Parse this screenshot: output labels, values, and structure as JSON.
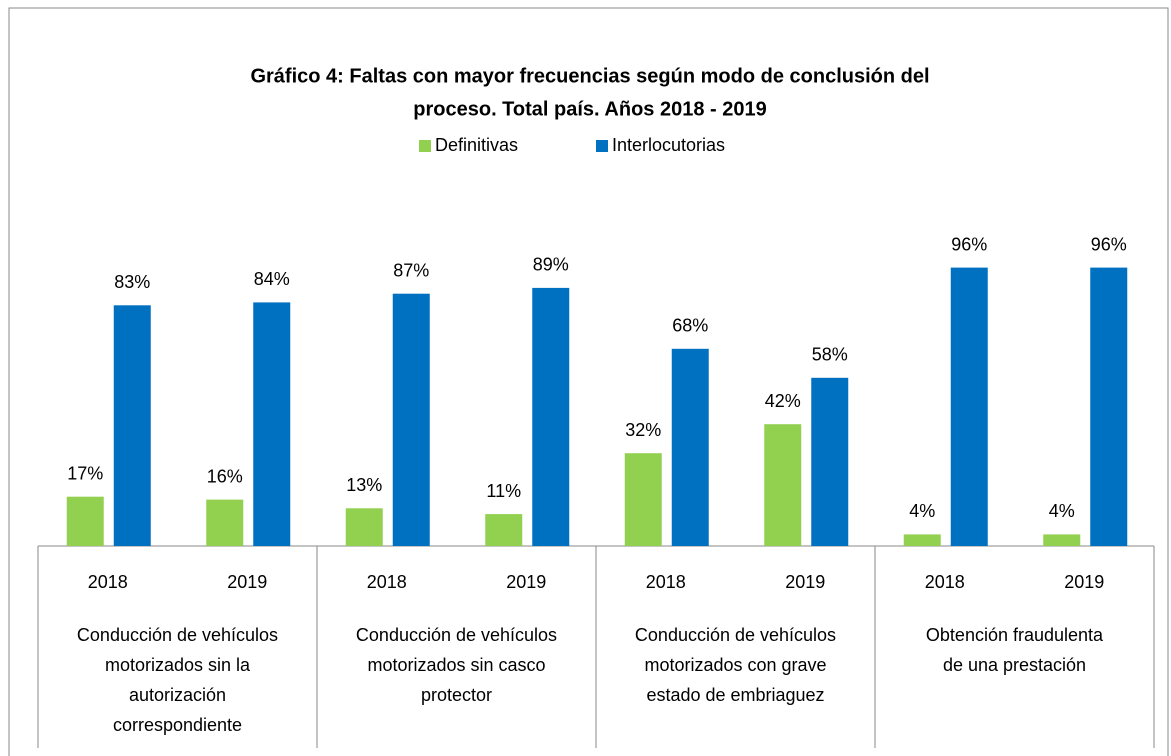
{
  "chart_data": {
    "type": "bar",
    "title": [
      "Gráfico 4: Faltas con mayor frecuencias según modo de conclusión del",
      "proceso. Total país. Años 2018 - 2019"
    ],
    "categories": [
      "2018",
      "2019",
      "2018",
      "2019",
      "2018",
      "2019",
      "2018",
      "2019"
    ],
    "group_labels": [
      [
        "Conducción de vehículos",
        "motorizados sin la",
        "autorización",
        "correspondiente"
      ],
      [
        "Conducción de vehículos",
        "motorizados sin casco",
        "protector"
      ],
      [
        "Conducción de vehículos",
        "motorizados con grave",
        "estado de embriaguez"
      ],
      [
        "Obtención fraudulenta",
        "de una prestación"
      ]
    ],
    "series": [
      {
        "name": "Definitivas",
        "color": "#92d050",
        "values": [
          17,
          16,
          13,
          11,
          32,
          42,
          4,
          4
        ],
        "value_labels": [
          "17%",
          "16%",
          "13%",
          "11%",
          "32%",
          "42%",
          "4%",
          "4%"
        ]
      },
      {
        "name": "Interlocutorias",
        "color": "#0070c0",
        "values": [
          83,
          84,
          87,
          89,
          68,
          58,
          96,
          96
        ],
        "value_labels": [
          "83%",
          "84%",
          "87%",
          "89%",
          "68%",
          "58%",
          "96%",
          "96%"
        ]
      }
    ],
    "ylim": [
      0,
      100
    ],
    "legend": "top"
  }
}
